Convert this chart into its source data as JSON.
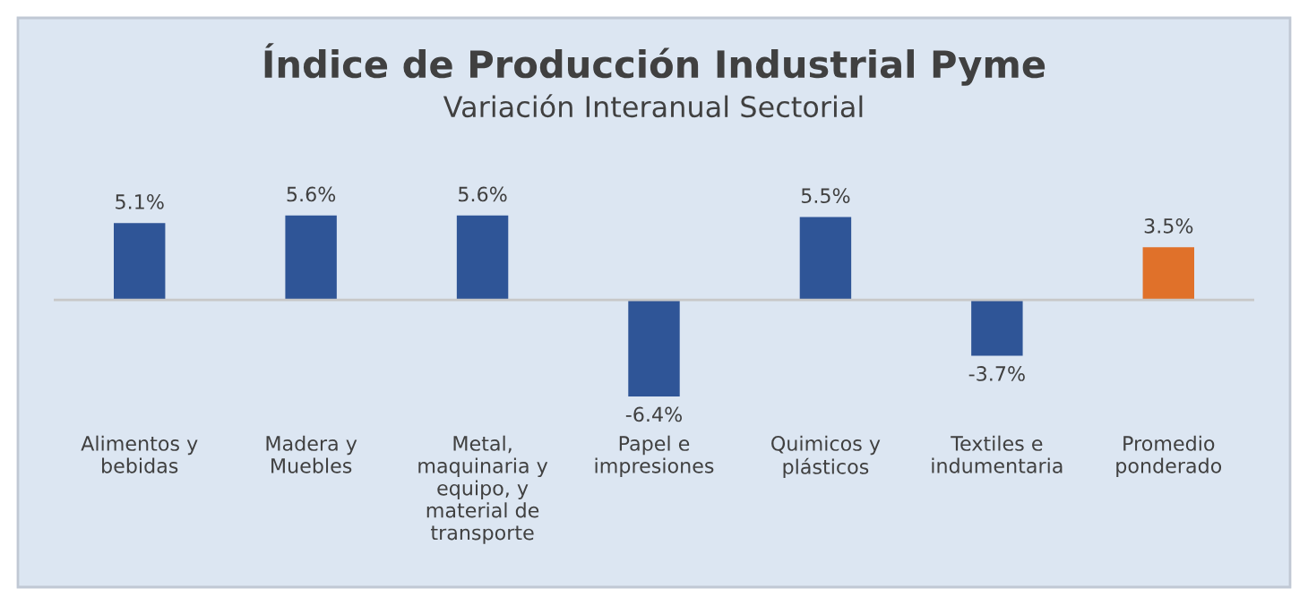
{
  "chart_data": {
    "type": "bar",
    "title": "Índice de Producción Industrial Pyme",
    "subtitle": "Variación Interanual Sectorial",
    "categories": [
      "Alimentos y\nbebidas",
      "Madera y\nMuebles",
      "Metal,\nmaquinaria y\nequipo, y\nmaterial de\ntransporte",
      "Papel e\nimpresiones",
      "Quimicos y\nplásticos",
      "Textiles e\nindumentaria",
      "Promedio\nponderado"
    ],
    "values": [
      5.1,
      5.6,
      5.6,
      -6.4,
      5.5,
      -3.7,
      3.5
    ],
    "value_labels": [
      "5.1%",
      "5.6%",
      "5.6%",
      "-6.4%",
      "5.5%",
      "-3.7%",
      "3.5%"
    ],
    "colors": [
      "#2f5597",
      "#2f5597",
      "#2f5597",
      "#2f5597",
      "#2f5597",
      "#2f5597",
      "#e0712a"
    ]
  }
}
